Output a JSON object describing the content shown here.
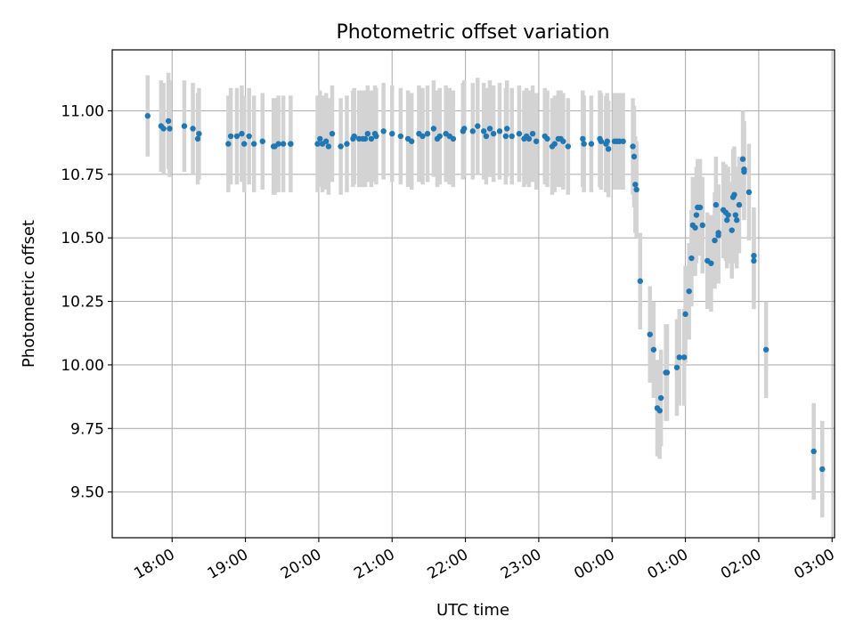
{
  "chart_data": {
    "type": "scatter",
    "title": "Photometric offset variation",
    "xlabel": "UTC time",
    "ylabel": "Photometric offset",
    "x_ticks": [
      "18:00",
      "19:00",
      "20:00",
      "21:00",
      "22:00",
      "23:00",
      "00:00",
      "01:00",
      "02:00",
      "03:00"
    ],
    "y_ticks": [
      "9.50",
      "9.75",
      "10.00",
      "10.25",
      "10.50",
      "10.75",
      "11.00"
    ],
    "xlim": [
      "17:11",
      "03:02"
    ],
    "ylim": [
      9.32,
      11.24
    ],
    "grid": true,
    "colors": {
      "point": "#1f77b4",
      "errorbar": "#d3d3d3",
      "grid": "#b0b0b0"
    },
    "series": [
      {
        "x": [
          "17:40",
          "17:51",
          "17:53",
          "17:57",
          "17:58",
          "18:10",
          "18:17",
          "18:21",
          "18:22",
          "18:46",
          "18:48",
          "18:53",
          "18:57",
          "18:59",
          "19:03",
          "19:07",
          "19:14",
          "19:23",
          "19:24",
          "19:27",
          "19:31",
          "19:37",
          "19:37",
          "19:59",
          "20:01",
          "20:03",
          "20:06",
          "20:08",
          "20:11",
          "20:18",
          "20:23",
          "20:28",
          "20:29",
          "20:33",
          "20:36",
          "20:38",
          "20:40",
          "20:43",
          "20:46",
          "20:47",
          "20:53",
          "21:00",
          "21:07",
          "21:13",
          "21:16",
          "21:22",
          "21:25",
          "21:29",
          "21:34",
          "21:37",
          "21:39",
          "21:44",
          "21:47",
          "21:50",
          "21:58",
          "21:59",
          "22:06",
          "22:10",
          "22:15",
          "22:17",
          "22:20",
          "22:23",
          "22:28",
          "22:33",
          "22:34",
          "22:38",
          "22:44",
          "22:48",
          "22:50",
          "22:52",
          "22:55",
          "22:58",
          "23:05",
          "23:07",
          "23:11",
          "23:13",
          "23:16",
          "23:18",
          "23:20",
          "23:24",
          "23:36",
          "23:37",
          "23:43",
          "23:50",
          "23:51",
          "23:55",
          "23:56",
          "23:57",
          "00:02",
          "00:04",
          "00:06",
          "00:09",
          "00:17",
          "00:18",
          "00:19",
          "00:20",
          "00:23",
          "00:31",
          "00:34",
          "00:37",
          "00:39",
          "00:40",
          "00:44",
          "00:45",
          "00:53",
          "00:55",
          "00:59",
          "01:00",
          "01:03",
          "01:05",
          "01:06",
          "01:08",
          "01:09",
          "01:10",
          "01:12",
          "01:14",
          "01:18",
          "01:21",
          "01:24",
          "01:25",
          "01:27",
          "01:27",
          "01:31",
          "01:33",
          "01:34",
          "01:35",
          "01:38",
          "01:39",
          "01:40",
          "01:41",
          "01:42",
          "01:44",
          "01:47",
          "01:48",
          "01:48",
          "01:52",
          "01:56",
          "01:56",
          "02:06",
          "02:45",
          "02:52"
        ],
        "y": [
          10.98,
          10.94,
          10.93,
          10.96,
          10.93,
          10.94,
          10.93,
          10.89,
          10.91,
          10.87,
          10.9,
          10.9,
          10.91,
          10.87,
          10.9,
          10.87,
          10.88,
          10.86,
          10.86,
          10.87,
          10.87,
          10.87,
          10.87,
          10.87,
          10.89,
          10.87,
          10.88,
          10.86,
          10.91,
          10.86,
          10.87,
          10.89,
          10.9,
          10.89,
          10.89,
          10.89,
          10.91,
          10.89,
          10.91,
          10.9,
          10.92,
          10.91,
          10.9,
          10.89,
          10.88,
          10.91,
          10.9,
          10.91,
          10.93,
          10.89,
          10.9,
          10.91,
          10.9,
          10.89,
          10.92,
          10.93,
          10.92,
          10.94,
          10.92,
          10.9,
          10.93,
          10.91,
          10.92,
          10.9,
          10.93,
          10.9,
          10.91,
          10.89,
          10.9,
          10.89,
          10.91,
          10.88,
          10.9,
          10.89,
          10.86,
          10.87,
          10.89,
          10.89,
          10.88,
          10.86,
          10.89,
          10.87,
          10.87,
          10.89,
          10.88,
          10.87,
          10.88,
          10.85,
          10.88,
          10.88,
          10.88,
          10.88,
          10.86,
          10.82,
          10.71,
          10.69,
          10.33,
          10.12,
          10.06,
          9.83,
          9.82,
          9.87,
          9.97,
          9.97,
          9.99,
          10.03,
          10.03,
          10.2,
          10.29,
          10.42,
          10.55,
          10.54,
          10.59,
          10.62,
          10.62,
          10.55,
          10.41,
          10.4,
          10.49,
          10.63,
          10.51,
          10.52,
          10.61,
          10.6,
          10.57,
          10.59,
          10.53,
          10.66,
          10.67,
          10.59,
          10.57,
          10.63,
          10.81,
          10.77,
          10.76,
          10.68,
          10.43,
          10.41,
          10.06,
          9.66,
          9.59
        ],
        "err": [
          0.16,
          0.18,
          0.18,
          0.19,
          0.19,
          0.18,
          0.18,
          0.18,
          0.18,
          0.19,
          0.19,
          0.19,
          0.19,
          0.19,
          0.19,
          0.19,
          0.19,
          0.19,
          0.19,
          0.19,
          0.19,
          0.19,
          0.19,
          0.19,
          0.19,
          0.19,
          0.19,
          0.19,
          0.19,
          0.19,
          0.19,
          0.19,
          0.19,
          0.19,
          0.19,
          0.19,
          0.19,
          0.19,
          0.19,
          0.19,
          0.19,
          0.19,
          0.19,
          0.19,
          0.19,
          0.19,
          0.19,
          0.19,
          0.19,
          0.19,
          0.19,
          0.19,
          0.19,
          0.19,
          0.19,
          0.19,
          0.19,
          0.19,
          0.19,
          0.19,
          0.19,
          0.19,
          0.19,
          0.19,
          0.19,
          0.19,
          0.19,
          0.19,
          0.19,
          0.19,
          0.19,
          0.19,
          0.19,
          0.19,
          0.19,
          0.19,
          0.19,
          0.19,
          0.19,
          0.19,
          0.19,
          0.19,
          0.19,
          0.19,
          0.19,
          0.19,
          0.19,
          0.19,
          0.19,
          0.19,
          0.19,
          0.19,
          0.19,
          0.2,
          0.19,
          0.19,
          0.19,
          0.19,
          0.19,
          0.19,
          0.19,
          0.19,
          0.19,
          0.19,
          0.19,
          0.19,
          0.19,
          0.19,
          0.19,
          0.19,
          0.19,
          0.19,
          0.19,
          0.19,
          0.19,
          0.19,
          0.19,
          0.19,
          0.19,
          0.19,
          0.19,
          0.19,
          0.19,
          0.19,
          0.19,
          0.19,
          0.19,
          0.19,
          0.19,
          0.19,
          0.19,
          0.19,
          0.19,
          0.19,
          0.19,
          0.19,
          0.19,
          0.19,
          0.19,
          0.19,
          0.19
        ]
      }
    ]
  }
}
